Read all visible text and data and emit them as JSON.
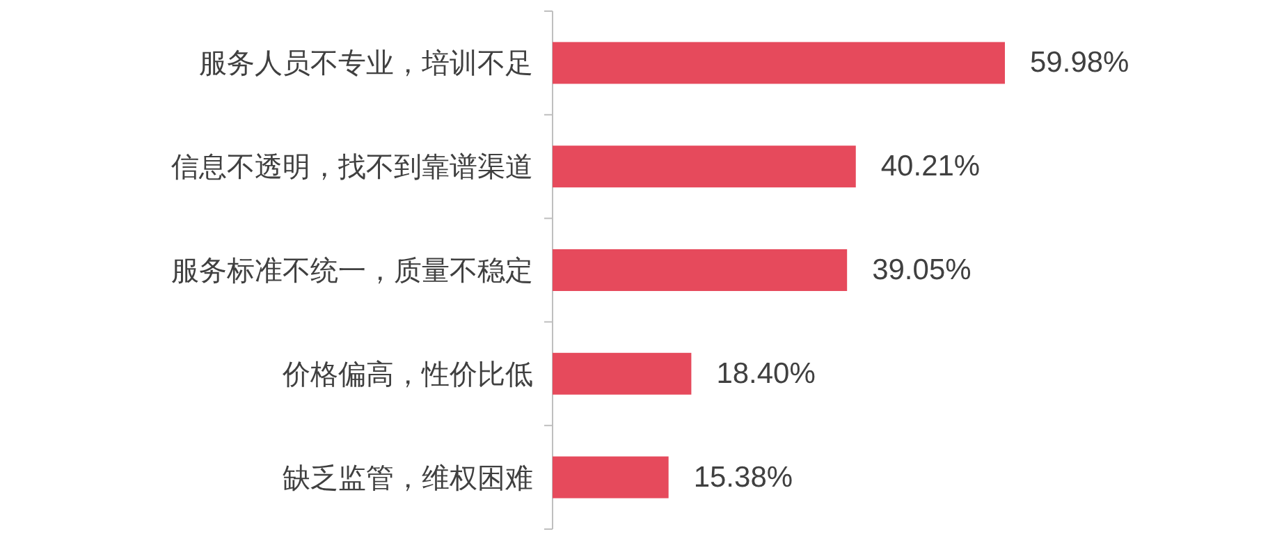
{
  "chart_data": {
    "type": "bar",
    "orientation": "horizontal",
    "categories": [
      "服务人员不专业，培训不足",
      "信息不透明，找不到靠谱渠道",
      "服务标准不统一，质量不稳定",
      "价格偏高，性价比低",
      "缺乏监管，维权困难"
    ],
    "values": [
      59.98,
      40.21,
      39.05,
      18.4,
      15.38
    ],
    "value_labels": [
      "59.98%",
      "40.21%",
      "39.05%",
      "18.40%",
      "15.38%"
    ],
    "color": "#e64a5c"
  }
}
